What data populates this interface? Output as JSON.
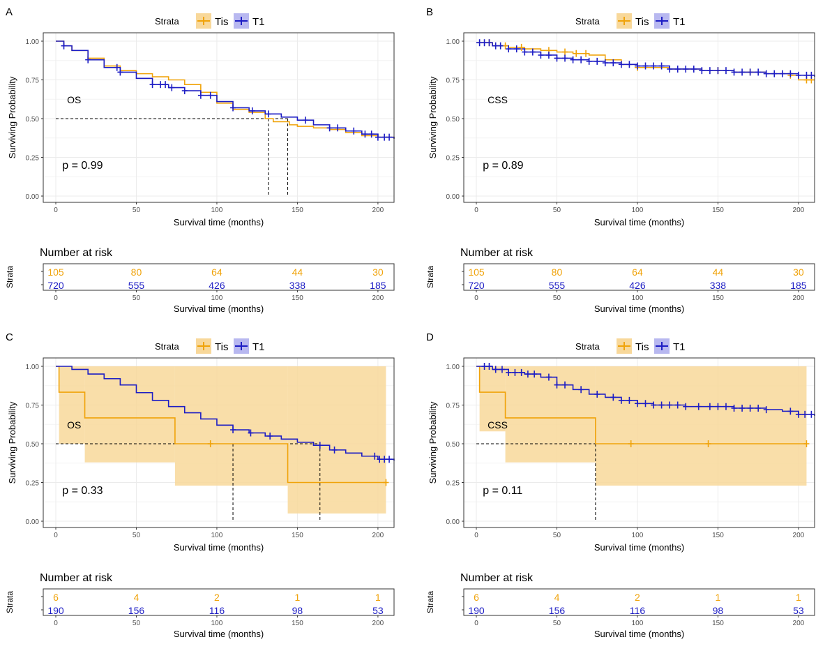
{
  "colors": {
    "tis": "#F0A30A",
    "t1": "#1D1DC4",
    "tis_band": "#F8D89A",
    "grid": "#EBEBEB",
    "axis": "#333333",
    "tick_text": "#4D4D4D"
  },
  "common": {
    "legend_title": "Strata",
    "xlabel": "Survival time (months)",
    "ylabel": "Surviving Probability",
    "risk_title": "Number at risk",
    "risk_ylabel": "Strata",
    "x_ticks": [
      "0",
      "50",
      "100",
      "150",
      "200"
    ],
    "y_ticks": [
      "0.00",
      "0.25",
      "0.50",
      "0.75",
      "1.00"
    ]
  },
  "chart_data": [
    {
      "panel_label": "A",
      "type": "line",
      "annotation": "OS",
      "pvalue": "p = 0.99",
      "xlim": [
        0,
        210
      ],
      "ylim": [
        0,
        1
      ],
      "legend_position": "top",
      "series": [
        {
          "name": "Tis",
          "x": [
            0,
            5,
            10,
            20,
            30,
            40,
            50,
            60,
            70,
            80,
            90,
            100,
            110,
            120,
            130,
            135,
            145,
            150,
            160,
            170,
            180,
            190,
            200,
            210
          ],
          "y": [
            1.0,
            0.97,
            0.94,
            0.89,
            0.84,
            0.81,
            0.79,
            0.77,
            0.75,
            0.72,
            0.67,
            0.6,
            0.56,
            0.54,
            0.5,
            0.48,
            0.46,
            0.45,
            0.44,
            0.43,
            0.41,
            0.39,
            0.38,
            0.37
          ],
          "censor_x": []
        },
        {
          "name": "T1",
          "x": [
            0,
            5,
            10,
            20,
            30,
            40,
            50,
            60,
            70,
            80,
            90,
            100,
            110,
            120,
            130,
            140,
            150,
            160,
            170,
            180,
            190,
            200,
            210
          ],
          "y": [
            1.0,
            0.97,
            0.94,
            0.88,
            0.83,
            0.8,
            0.76,
            0.72,
            0.7,
            0.68,
            0.65,
            0.61,
            0.57,
            0.55,
            0.53,
            0.51,
            0.49,
            0.46,
            0.44,
            0.42,
            0.4,
            0.38,
            0.37
          ],
          "censor_x": [
            5,
            20,
            38,
            40,
            60,
            65,
            68,
            72,
            80,
            90,
            96,
            110,
            122,
            132,
            155,
            170,
            175,
            185,
            192,
            196,
            200,
            204,
            207
          ]
        }
      ],
      "median_lines": [
        132,
        144
      ],
      "risk_table": {
        "times": [
          0,
          50,
          100,
          150,
          200
        ],
        "Tis": [
          "105",
          "80",
          "64",
          "44",
          "30"
        ],
        "T1": [
          "720",
          "555",
          "426",
          "338",
          "185"
        ]
      }
    },
    {
      "panel_label": "B",
      "type": "line",
      "annotation": "CSS",
      "pvalue": "p = 0.89",
      "xlim": [
        0,
        210
      ],
      "ylim": [
        0,
        1
      ],
      "legend_position": "top",
      "series": [
        {
          "name": "Tis",
          "x": [
            0,
            10,
            20,
            30,
            40,
            50,
            60,
            70,
            80,
            90,
            100,
            120,
            140,
            160,
            180,
            195,
            200,
            210
          ],
          "y": [
            0.99,
            0.97,
            0.96,
            0.95,
            0.94,
            0.93,
            0.92,
            0.91,
            0.88,
            0.85,
            0.83,
            0.82,
            0.81,
            0.8,
            0.79,
            0.78,
            0.75,
            0.75
          ],
          "censor_x": [
            8,
            18,
            28,
            45,
            55,
            62,
            68,
            100,
            150,
            170,
            195,
            205,
            208
          ]
        },
        {
          "name": "T1",
          "x": [
            0,
            10,
            20,
            30,
            40,
            50,
            60,
            70,
            80,
            90,
            100,
            120,
            140,
            160,
            180,
            200,
            210
          ],
          "y": [
            0.99,
            0.97,
            0.95,
            0.93,
            0.91,
            0.89,
            0.88,
            0.87,
            0.86,
            0.85,
            0.84,
            0.82,
            0.81,
            0.8,
            0.79,
            0.78,
            0.77
          ],
          "censor_x": [
            2,
            5,
            8,
            12,
            15,
            20,
            25,
            30,
            35,
            40,
            45,
            50,
            55,
            60,
            65,
            70,
            75,
            80,
            85,
            90,
            95,
            100,
            105,
            110,
            115,
            120,
            125,
            130,
            135,
            140,
            145,
            150,
            155,
            160,
            165,
            170,
            175,
            180,
            185,
            190,
            195,
            200,
            205,
            208
          ]
        }
      ],
      "median_lines": [],
      "risk_table": {
        "times": [
          0,
          50,
          100,
          150,
          200
        ],
        "Tis": [
          "105",
          "80",
          "64",
          "44",
          "30"
        ],
        "T1": [
          "720",
          "555",
          "426",
          "338",
          "185"
        ]
      }
    },
    {
      "panel_label": "C",
      "type": "line",
      "annotation": "OS",
      "pvalue": "p = 0.33",
      "xlim": [
        0,
        210
      ],
      "ylim": [
        0,
        1
      ],
      "legend_position": "top",
      "series": [
        {
          "name": "Tis",
          "x": [
            0,
            2,
            2,
            18,
            18,
            74,
            74,
            144,
            144,
            205
          ],
          "y": [
            1.0,
            1.0,
            0.833,
            0.833,
            0.667,
            0.667,
            0.5,
            0.5,
            0.25,
            0.25
          ],
          "censor_x": [
            96,
            205
          ],
          "ci_band": [
            {
              "x0": 2,
              "x1": 18,
              "lo": 0.5,
              "hi": 1.0
            },
            {
              "x0": 18,
              "x1": 74,
              "lo": 0.38,
              "hi": 1.0
            },
            {
              "x0": 74,
              "x1": 144,
              "lo": 0.23,
              "hi": 1.0
            },
            {
              "x0": 144,
              "x1": 205,
              "lo": 0.05,
              "hi": 1.0
            }
          ]
        },
        {
          "name": "T1",
          "x": [
            0,
            10,
            20,
            30,
            40,
            50,
            60,
            70,
            80,
            90,
            100,
            110,
            120,
            130,
            140,
            150,
            160,
            170,
            180,
            190,
            200,
            210
          ],
          "y": [
            1.0,
            0.98,
            0.95,
            0.92,
            0.88,
            0.83,
            0.78,
            0.74,
            0.7,
            0.66,
            0.62,
            0.59,
            0.57,
            0.55,
            0.53,
            0.51,
            0.49,
            0.46,
            0.44,
            0.42,
            0.4,
            0.39
          ],
          "censor_x": [
            110,
            121,
            133,
            164,
            173,
            198,
            201,
            204,
            207
          ]
        }
      ],
      "median_lines": [
        110,
        164
      ],
      "risk_table": {
        "times": [
          0,
          50,
          100,
          150,
          200
        ],
        "Tis": [
          "6",
          "4",
          "2",
          "1",
          "1"
        ],
        "T1": [
          "190",
          "156",
          "116",
          "98",
          "53"
        ]
      }
    },
    {
      "panel_label": "D",
      "type": "line",
      "annotation": "CSS",
      "pvalue": "p = 0.11",
      "xlim": [
        0,
        210
      ],
      "ylim": [
        0,
        1
      ],
      "legend_position": "top",
      "series": [
        {
          "name": "Tis",
          "x": [
            0,
            2,
            2,
            18,
            18,
            74,
            74,
            205
          ],
          "y": [
            1.0,
            1.0,
            0.833,
            0.833,
            0.667,
            0.667,
            0.5,
            0.5
          ],
          "censor_x": [
            96,
            144,
            205
          ],
          "ci_band": [
            {
              "x0": 2,
              "x1": 18,
              "lo": 0.58,
              "hi": 1.0
            },
            {
              "x0": 18,
              "x1": 74,
              "lo": 0.38,
              "hi": 1.0
            },
            {
              "x0": 74,
              "x1": 205,
              "lo": 0.23,
              "hi": 1.0
            }
          ]
        },
        {
          "name": "T1",
          "x": [
            0,
            10,
            20,
            30,
            40,
            50,
            60,
            70,
            80,
            90,
            100,
            110,
            120,
            130,
            140,
            150,
            160,
            170,
            180,
            190,
            200,
            210
          ],
          "y": [
            1.0,
            0.98,
            0.96,
            0.95,
            0.93,
            0.88,
            0.85,
            0.82,
            0.8,
            0.78,
            0.76,
            0.75,
            0.75,
            0.74,
            0.74,
            0.74,
            0.73,
            0.73,
            0.72,
            0.71,
            0.69,
            0.68
          ],
          "censor_x": [
            5,
            8,
            12,
            16,
            20,
            24,
            28,
            32,
            36,
            45,
            50,
            55,
            65,
            75,
            85,
            90,
            95,
            100,
            105,
            110,
            115,
            120,
            125,
            130,
            138,
            145,
            150,
            155,
            160,
            165,
            170,
            175,
            180,
            195,
            200,
            204,
            208
          ]
        }
      ],
      "median_lines": [
        74
      ],
      "risk_table": {
        "times": [
          0,
          50,
          100,
          150,
          200
        ],
        "Tis": [
          "6",
          "4",
          "2",
          "1",
          "1"
        ],
        "T1": [
          "190",
          "156",
          "116",
          "98",
          "53"
        ]
      }
    }
  ]
}
